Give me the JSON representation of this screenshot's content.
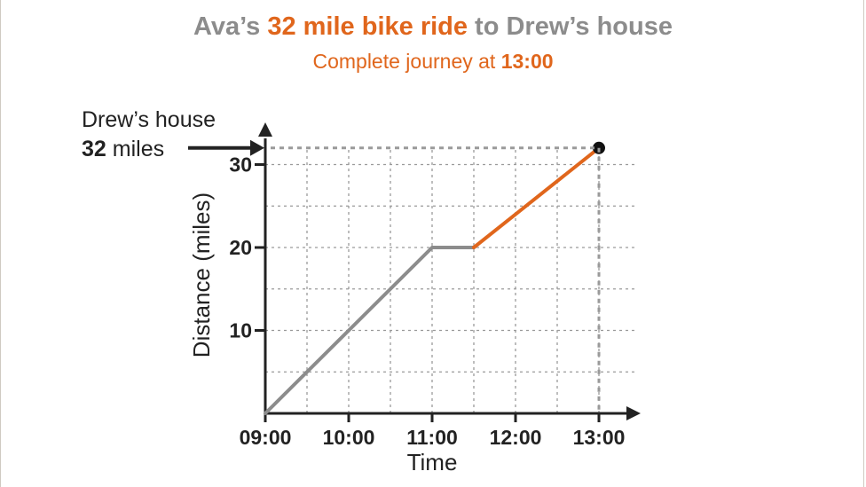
{
  "header": {
    "title_pre": "Ava’s ",
    "title_highlight": "32 mile bike ride",
    "title_post": " to Drew’s house",
    "subtitle_pre": "Complete journey at ",
    "subtitle_time": "13:00"
  },
  "annotation": {
    "line1": "Drew’s house",
    "value": "32",
    "unit": " miles"
  },
  "colors": {
    "grey": "#8c8c8c",
    "accent": "#e0661c",
    "axis": "#222222",
    "grid": "#9a9a9a"
  },
  "chart_data": {
    "type": "line",
    "title": "Ava’s 32 mile bike ride to Drew’s house",
    "subtitle": "Complete journey at 13:00",
    "xlabel": "Time",
    "ylabel": "Distance (miles)",
    "x_ticks": [
      "09:00",
      "10:00",
      "11:00",
      "12:00",
      "13:00"
    ],
    "y_ticks": [
      10,
      20,
      30
    ],
    "xlim": [
      "09:00",
      "13:00"
    ],
    "ylim": [
      0,
      30
    ],
    "grid": true,
    "series": [
      {
        "color": "#8c8c8c",
        "points": [
          [
            "09:00",
            0
          ],
          [
            "10:00",
            10
          ],
          [
            "11:00",
            20
          ],
          [
            "11:30",
            20
          ]
        ]
      },
      {
        "color": "#e0661c",
        "points": [
          [
            "11:30",
            20
          ],
          [
            "13:00",
            32
          ]
        ]
      }
    ],
    "end_point": [
      "13:00",
      32
    ]
  }
}
